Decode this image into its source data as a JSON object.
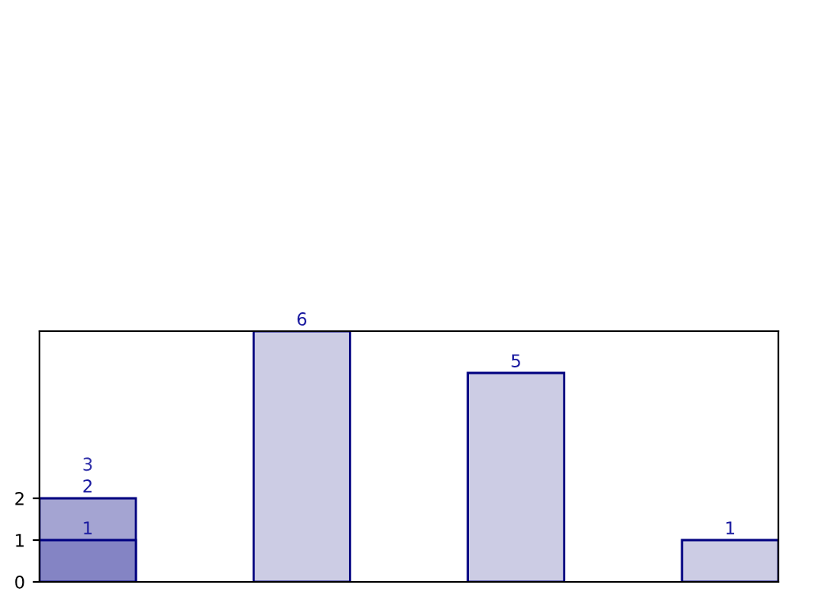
{
  "chart_data": {
    "type": "bar",
    "categories": [
      null,
      null,
      null,
      null
    ],
    "series": [
      {
        "color": "#cccce4",
        "values": [
          null,
          6,
          5,
          1
        ]
      },
      {
        "color": "#a4a4d2",
        "values": [
          2,
          null,
          null,
          null
        ]
      },
      {
        "color": "#8484c4",
        "values": [
          1,
          null,
          null,
          null
        ]
      }
    ],
    "ylim": [
      0,
      6
    ],
    "yticks": [
      0,
      1,
      2
    ],
    "data_labels": true,
    "grid": false,
    "legend": false,
    "annotations": [
      {
        "text": "3",
        "y": 2
      }
    ]
  }
}
